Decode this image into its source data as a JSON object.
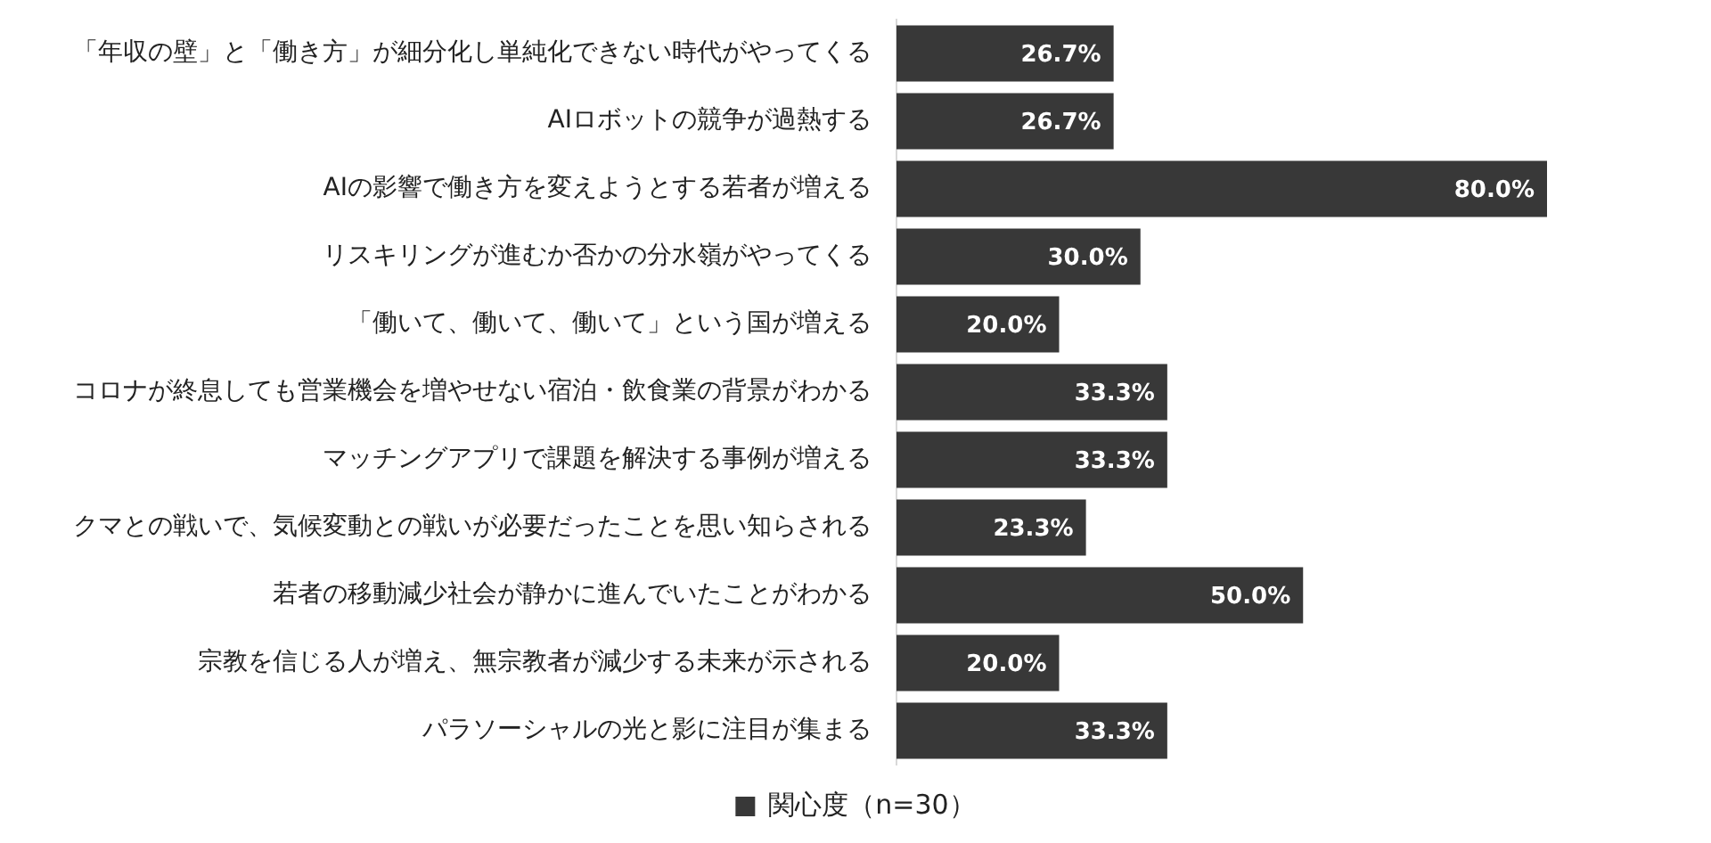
{
  "chart_data": {
    "type": "bar",
    "orientation": "horizontal",
    "categories": [
      "「年収の壁」と「働き方」が細分化し単純化できない時代がやってくる",
      "AIロボットの競争が過熱する",
      "AIの影響で働き方を変えようとする若者が増える",
      "リスキリングが進むか否かの分水嶺がやってくる",
      "「働いて、働いて、働いて」という国が増える",
      "コロナが終息しても営業機会を増やせない宿泊・飲食業の背景がわかる",
      "マッチングアプリで課題を解決する事例が増える",
      "クマとの戦いで、気候変動との戦いが必要だったことを思い知らされる",
      "若者の移動減少社会が静かに進んでいたことがわかる",
      "宗教を信じる人が増え、無宗教者が減少する未来が示される",
      "パラソーシャルの光と影に注目が集まる"
    ],
    "series": [
      {
        "name": "関心度（n=30）",
        "color": "#383838",
        "values": [
          26.7,
          26.7,
          80.0,
          30.0,
          20.0,
          33.3,
          33.3,
          23.3,
          50.0,
          20.0,
          33.3
        ],
        "value_labels": [
          "26.7%",
          "26.7%",
          "80.0%",
          "30.0%",
          "20.0%",
          "33.3%",
          "33.3%",
          "23.3%",
          "50.0%",
          "20.0%",
          "33.3%"
        ]
      }
    ],
    "tick_labels": "y",
    "grid": false,
    "legend": "bottom"
  }
}
